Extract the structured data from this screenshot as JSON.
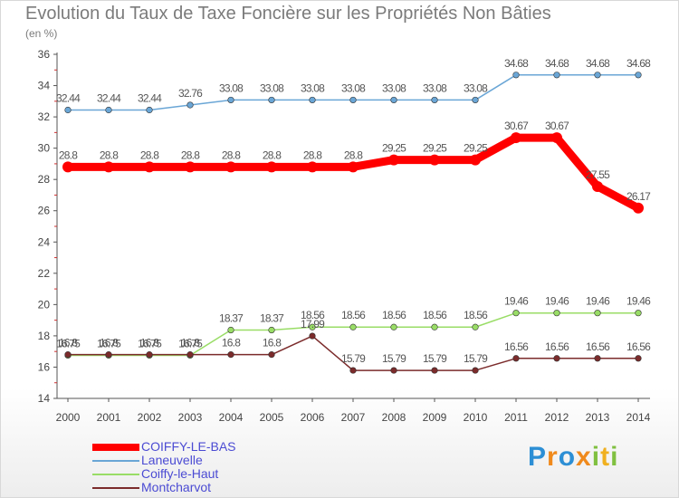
{
  "title": "Evolution du Taux de Taxe Foncière sur les Propriétés Non Bâties",
  "subtitle": "(en %)",
  "logo": {
    "letters": [
      "P",
      "r",
      "o",
      "x",
      "i",
      "t",
      "i"
    ],
    "colors": [
      "#2d8fd5",
      "#f08a1c",
      "#2d8fd5",
      "#f08a1c",
      "#80c040",
      "#f0b020",
      "#80c040"
    ]
  },
  "chart_data": {
    "type": "line",
    "title": "Evolution du Taux de Taxe Foncière sur les Propriétés Non Bâties",
    "ylabel": "(en %)",
    "xlabel": "",
    "ylim": [
      14,
      36
    ],
    "yticks": [
      14,
      16,
      18,
      20,
      22,
      24,
      26,
      28,
      30,
      32,
      34,
      36
    ],
    "grid": false,
    "legend_position": "bottom-left",
    "x": [
      "2000",
      "2001",
      "2002",
      "2003",
      "2004",
      "2005",
      "2006",
      "2007",
      "2008",
      "2009",
      "2010",
      "2011",
      "2012",
      "2013",
      "2014"
    ],
    "series": [
      {
        "name": "COIFFY-LE-BAS",
        "color": "#ff0000",
        "emphasis": true,
        "values": [
          28.8,
          28.8,
          28.8,
          28.8,
          28.8,
          28.8,
          28.8,
          28.8,
          29.25,
          29.25,
          29.25,
          30.67,
          30.67,
          27.55,
          26.17
        ],
        "labels": [
          "28.8",
          "28.8",
          "28.8",
          "28.8",
          "28.8",
          "28.8",
          "28.8",
          "28.8",
          "29.25",
          "29.25",
          "29.25",
          "30.67",
          "30.67",
          "27.55",
          "26.17"
        ]
      },
      {
        "name": "Laneuvelle",
        "color": "#6aa6d6",
        "emphasis": false,
        "values": [
          32.44,
          32.44,
          32.44,
          32.76,
          33.08,
          33.08,
          33.08,
          33.08,
          33.08,
          33.08,
          33.08,
          34.68,
          34.68,
          34.68,
          34.68
        ],
        "labels": [
          "32.44",
          "32.44",
          "32.44",
          "32.76",
          "33.08",
          "33.08",
          "33.08",
          "33.08",
          "33.08",
          "33.08",
          "33.08",
          "34.68",
          "34.68",
          "34.68",
          "34.68"
        ]
      },
      {
        "name": "Coiffy-le-Haut",
        "color": "#99dd66",
        "emphasis": false,
        "values": [
          16.75,
          16.75,
          16.75,
          16.75,
          18.37,
          18.37,
          18.56,
          18.56,
          18.56,
          18.56,
          18.56,
          19.46,
          19.46,
          19.46,
          19.46
        ],
        "labels": [
          "16.75",
          "16.75",
          "16.75",
          "16.75",
          "18.37",
          "18.37",
          "18.56",
          "18.56",
          "18.56",
          "18.56",
          "18.56",
          "19.46",
          "19.46",
          "19.46",
          "19.46"
        ]
      },
      {
        "name": "Montcharvot",
        "color": "#7b2b2b",
        "emphasis": false,
        "values": [
          16.8,
          16.8,
          16.8,
          16.8,
          16.8,
          16.8,
          17.99,
          15.79,
          15.79,
          15.79,
          15.79,
          16.56,
          16.56,
          16.56,
          16.56
        ],
        "labels": [
          "16.8",
          "16.8",
          "16.8",
          "16.8",
          "16.8",
          "16.8",
          "17.99",
          "15.79",
          "15.79",
          "15.79",
          "15.79",
          "16.56",
          "16.56",
          "16.56",
          "16.56"
        ]
      }
    ]
  }
}
